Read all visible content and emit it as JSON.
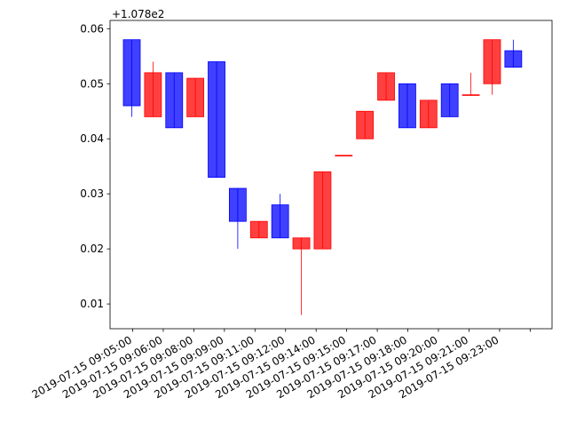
{
  "chart_data": {
    "type": "candlestick",
    "offset_label": "+1.078e2",
    "offset": 107.8,
    "y_ticks": [
      0.01,
      0.02,
      0.03,
      0.04,
      0.05,
      0.06
    ],
    "y_tick_labels": [
      "0.01",
      "0.02",
      "0.03",
      "0.04",
      "0.05",
      "0.06"
    ],
    "ylim": [
      0.0055,
      0.0615
    ],
    "x_tick_labels": [
      "2019-07-15 09:05:00",
      "2019-07-15 09:06:00",
      "2019-07-15 09:08:00",
      "2019-07-15 09:09:00",
      "2019-07-15 09:11:00",
      "2019-07-15 09:12:00",
      "2019-07-15 09:14:00",
      "2019-07-15 09:15:00",
      "2019-07-15 09:17:00",
      "2019-07-15 09:18:00",
      "2019-07-15 09:20:00",
      "2019-07-15 09:21:00",
      "2019-07-15 09:23:00",
      ""
    ],
    "candles": [
      {
        "open": 0.058,
        "close": 0.046,
        "high": 0.058,
        "low": 0.044
      },
      {
        "open": 0.044,
        "close": 0.052,
        "high": 0.054,
        "low": 0.044
      },
      {
        "open": 0.052,
        "close": 0.042,
        "high": 0.052,
        "low": 0.042
      },
      {
        "open": 0.044,
        "close": 0.051,
        "high": 0.051,
        "low": 0.044
      },
      {
        "open": 0.054,
        "close": 0.033,
        "high": 0.054,
        "low": 0.033
      },
      {
        "open": 0.031,
        "close": 0.025,
        "high": 0.031,
        "low": 0.02
      },
      {
        "open": 0.022,
        "close": 0.025,
        "high": 0.025,
        "low": 0.022
      },
      {
        "open": 0.028,
        "close": 0.022,
        "high": 0.03,
        "low": 0.022
      },
      {
        "open": 0.02,
        "close": 0.022,
        "high": 0.022,
        "low": 0.008
      },
      {
        "open": 0.02,
        "close": 0.034,
        "high": 0.034,
        "low": 0.02
      },
      {
        "open": 0.037,
        "close": 0.037,
        "high": 0.037,
        "low": 0.037
      },
      {
        "open": 0.04,
        "close": 0.045,
        "high": 0.045,
        "low": 0.04
      },
      {
        "open": 0.047,
        "close": 0.052,
        "high": 0.052,
        "low": 0.047
      },
      {
        "open": 0.05,
        "close": 0.042,
        "high": 0.05,
        "low": 0.042
      },
      {
        "open": 0.042,
        "close": 0.047,
        "high": 0.047,
        "low": 0.042
      },
      {
        "open": 0.05,
        "close": 0.044,
        "high": 0.05,
        "low": 0.044
      },
      {
        "open": 0.048,
        "close": 0.048,
        "high": 0.052,
        "low": 0.048
      },
      {
        "open": 0.05,
        "close": 0.058,
        "high": 0.058,
        "low": 0.048
      },
      {
        "open": 0.056,
        "close": 0.053,
        "high": 0.058,
        "low": 0.053
      }
    ],
    "colors": {
      "up": "#ff0000",
      "down": "#0000ff"
    },
    "grid": false,
    "title": "",
    "xlabel": "",
    "ylabel": ""
  }
}
